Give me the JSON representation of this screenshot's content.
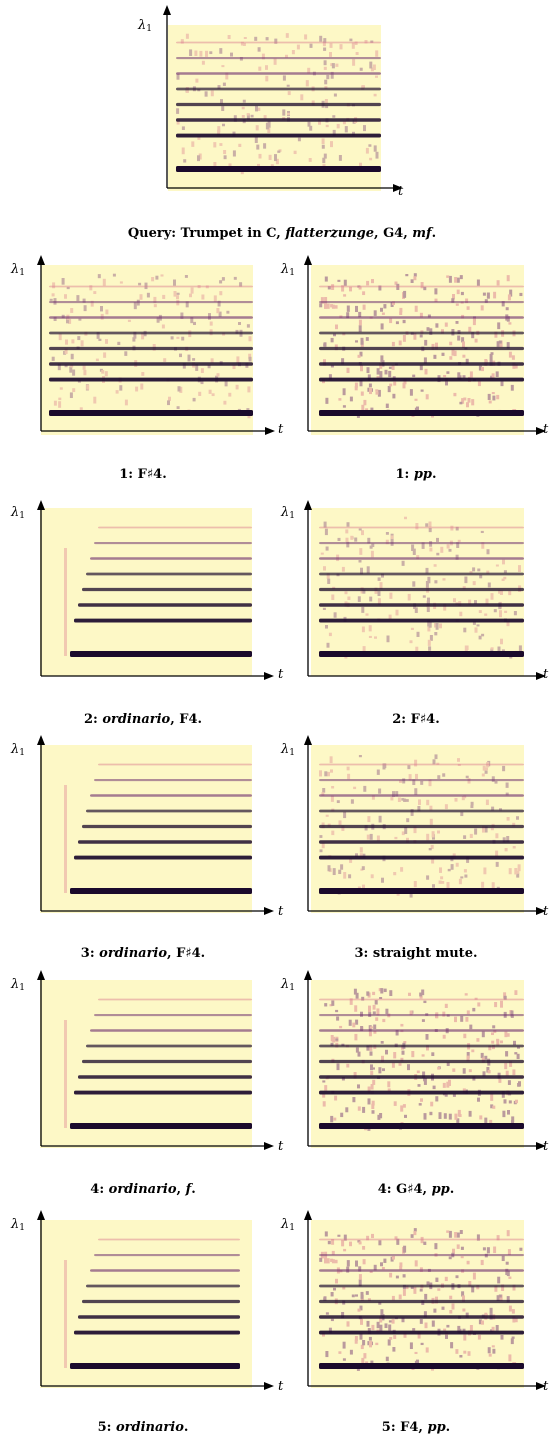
{
  "axes": {
    "y_label": "λ",
    "y_sub": "1",
    "x_label": "t"
  },
  "colors": {
    "background": "#fdf8c6",
    "dark": "#1b0a2c",
    "mid": "#6a2a6c",
    "light": "#d9738a"
  },
  "panels": [
    {
      "id": "query",
      "caption_parts": [
        [
          "Query: Trumpet in C, ",
          false
        ],
        [
          "flatterzunge",
          true
        ],
        [
          ", G4, ",
          false
        ],
        [
          "mf",
          true
        ],
        [
          ".",
          false
        ]
      ],
      "style": "flutter"
    },
    {
      "id": "1a",
      "caption_parts": [
        [
          "1: F♯4.",
          false
        ]
      ],
      "style": "flutter"
    },
    {
      "id": "1b",
      "caption_parts": [
        [
          "1: ",
          false
        ],
        [
          "pp",
          true
        ],
        [
          ".",
          false
        ]
      ],
      "style": "noisy"
    },
    {
      "id": "2a",
      "caption_parts": [
        [
          "2: ",
          false
        ],
        [
          "ordinario",
          true
        ],
        [
          ", F4.",
          false
        ]
      ],
      "style": "ordinario"
    },
    {
      "id": "2b",
      "caption_parts": [
        [
          "2: F♯4.",
          false
        ]
      ],
      "style": "flutter"
    },
    {
      "id": "3a",
      "caption_parts": [
        [
          "3: ",
          false
        ],
        [
          "ordinario",
          true
        ],
        [
          ", F♯4.",
          false
        ]
      ],
      "style": "clean"
    },
    {
      "id": "3b",
      "caption_parts": [
        [
          "3: straight mute.",
          false
        ]
      ],
      "style": "mute"
    },
    {
      "id": "4a",
      "caption_parts": [
        [
          "4: ",
          false
        ],
        [
          "ordinario",
          true
        ],
        [
          ", ",
          false
        ],
        [
          "f",
          true
        ],
        [
          ".",
          false
        ]
      ],
      "style": "clean"
    },
    {
      "id": "4b",
      "caption_parts": [
        [
          "4: G♯4, ",
          false
        ],
        [
          "pp",
          true
        ],
        [
          ".",
          false
        ]
      ],
      "style": "noisy"
    },
    {
      "id": "5a",
      "caption_parts": [
        [
          "5: ",
          false
        ],
        [
          "ordinario",
          true
        ],
        [
          ".",
          false
        ]
      ],
      "style": "ordinario"
    },
    {
      "id": "5b",
      "caption_parts": [
        [
          "5: F4, ",
          false
        ],
        [
          "pp",
          true
        ],
        [
          ".",
          false
        ]
      ],
      "style": "noisy"
    }
  ]
}
